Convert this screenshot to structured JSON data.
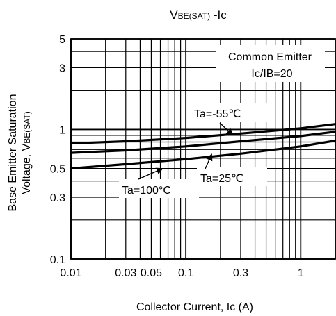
{
  "chart_data": {
    "type": "line",
    "title": "VBE(SAT) -Ic",
    "title_parts": {
      "main": "V",
      "sub": "BE(SAT)",
      "tail": " -Ic"
    },
    "xlabel": "Collector Current, Ic (A)",
    "ylabel": "Base Emitter Saturation Voltage, VBE(SAT)",
    "ylabel_lines": {
      "line1": "Base Emitter Saturation",
      "line2_main": "Voltage, V",
      "line2_sub": "BE(SAT)"
    },
    "x_scale": "log",
    "y_scale": "log",
    "xlim": [
      0.01,
      2
    ],
    "ylim": [
      0.1,
      5
    ],
    "grid": true,
    "x_ticks": [
      {
        "value": 0.01,
        "label": "0.01"
      },
      {
        "value": 0.03,
        "label": "0.03"
      },
      {
        "value": 0.05,
        "label": "0.05"
      },
      {
        "value": 0.1,
        "label": "0.1"
      },
      {
        "value": 0.3,
        "label": "0.3"
      },
      {
        "value": 1,
        "label": "1"
      }
    ],
    "y_ticks": [
      {
        "value": 0.1,
        "label": "0.1"
      },
      {
        "value": 0.3,
        "label": "0.3"
      },
      {
        "value": 0.5,
        "label": "0.5"
      },
      {
        "value": 1,
        "label": "1"
      },
      {
        "value": 3,
        "label": "3"
      },
      {
        "value": 5,
        "label": "5"
      }
    ],
    "series": [
      {
        "name": "Ta=-55°C",
        "x": [
          0.01,
          0.03,
          0.1,
          0.3,
          1,
          2
        ],
        "y": [
          0.78,
          0.81,
          0.86,
          0.93,
          1.02,
          1.1
        ]
      },
      {
        "name": "Ta=25°C",
        "x": [
          0.01,
          0.03,
          0.1,
          0.3,
          1,
          2
        ],
        "y": [
          0.66,
          0.69,
          0.74,
          0.81,
          0.89,
          0.96
        ]
      },
      {
        "name": "Ta=100°C",
        "x": [
          0.01,
          0.03,
          0.1,
          0.3,
          1,
          2
        ],
        "y": [
          0.5,
          0.54,
          0.59,
          0.65,
          0.74,
          0.82
        ]
      }
    ],
    "annotations": {
      "condition_line1": "Common Emitter",
      "condition_line2": "Ic/IB=20",
      "label_minus55": "Ta=-55℃",
      "label_25": "Ta=25℃",
      "label_100": "Ta=100°C"
    }
  }
}
